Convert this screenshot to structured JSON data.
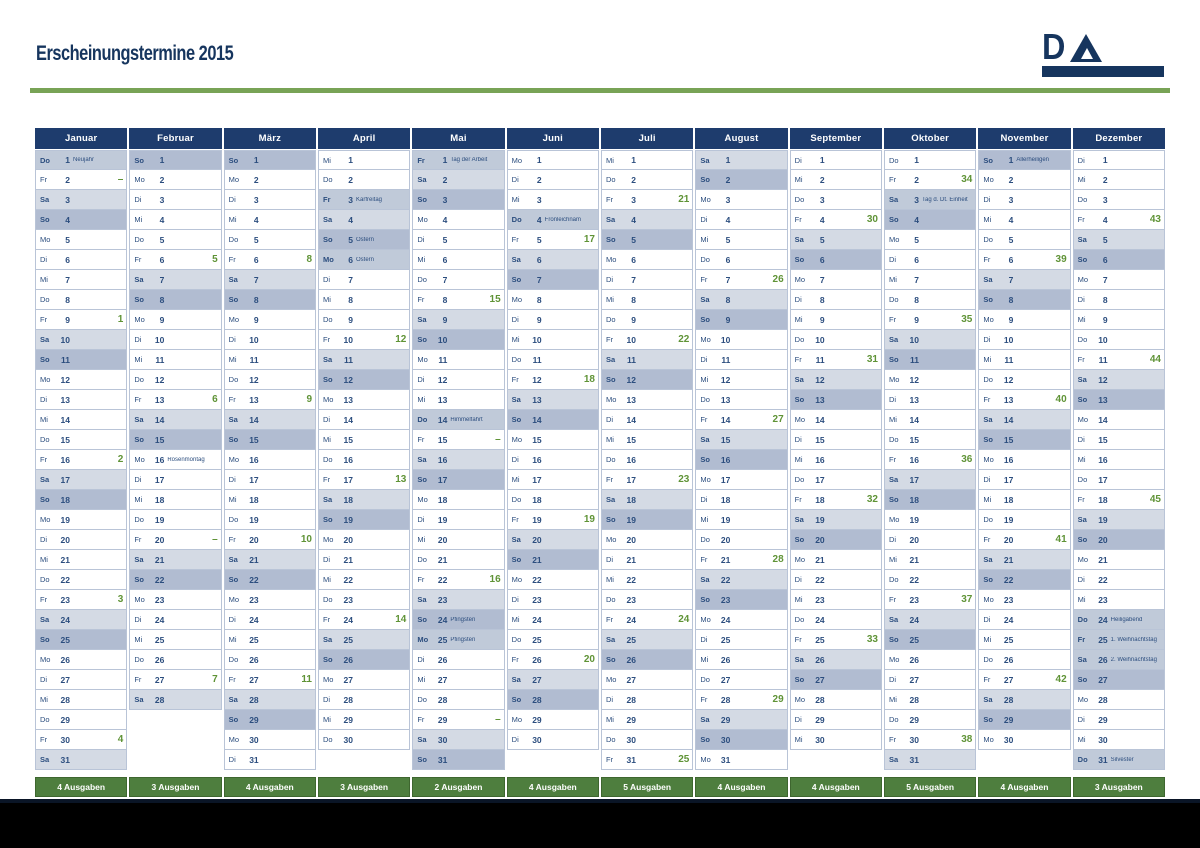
{
  "title": "Erscheinungstermine 2015",
  "logo": {
    "mark": "D"
  },
  "weekday_names": [
    "Mo",
    "Di",
    "Mi",
    "Do",
    "Fr",
    "Sa",
    "So"
  ],
  "colors": {
    "navy_header": "#1e3c6d",
    "cell_text_navy": "#2b4d7e",
    "saturday_bg": "#d4dae4",
    "sunday_bg": "#b1bcd1",
    "holiday_bg": "#c0cad9",
    "issue_green": "#5f9336",
    "rule_green": "#78a356",
    "footer_green": "#4e7e3e"
  },
  "months": [
    {
      "name": "Januar",
      "start": 3,
      "days": 31,
      "holidays": {
        "1": "Neujahr"
      },
      "notes": {},
      "issues": {
        "2": "–",
        "9": "1",
        "16": "2",
        "23": "3",
        "30": "4"
      },
      "footer": "4 Ausgaben"
    },
    {
      "name": "Februar",
      "start": 6,
      "days": 28,
      "holidays": {},
      "notes": {
        "16": "Rosenmontag"
      },
      "issues": {
        "6": "5",
        "13": "6",
        "20": "–",
        "27": "7"
      },
      "footer": "3 Ausgaben"
    },
    {
      "name": "März",
      "start": 6,
      "days": 31,
      "holidays": {},
      "notes": {},
      "issues": {
        "6": "8",
        "13": "9",
        "20": "10",
        "27": "11"
      },
      "footer": "4 Ausgaben"
    },
    {
      "name": "April",
      "start": 2,
      "days": 30,
      "holidays": {
        "3": "Karfreitag",
        "5": "Ostern",
        "6": "Ostern"
      },
      "notes": {},
      "issues": {
        "10": "12",
        "17": "13",
        "24": "14"
      },
      "footer": "3 Ausgaben"
    },
    {
      "name": "Mai",
      "start": 4,
      "days": 31,
      "holidays": {
        "1": "Tag der Arbeit",
        "14": "Himmelfahrt",
        "24": "Pfingsten",
        "25": "Pfingsten"
      },
      "notes": {},
      "issues": {
        "8": "15",
        "15": "–",
        "22": "16",
        "29": "–"
      },
      "footer": "2 Ausgaben"
    },
    {
      "name": "Juni",
      "start": 0,
      "days": 30,
      "holidays": {
        "4": "Fronleichnam"
      },
      "notes": {},
      "issues": {
        "5": "17",
        "12": "18",
        "19": "19",
        "26": "20"
      },
      "footer": "4 Ausgaben"
    },
    {
      "name": "Juli",
      "start": 2,
      "days": 31,
      "holidays": {},
      "notes": {},
      "issues": {
        "3": "21",
        "10": "22",
        "17": "23",
        "24": "24",
        "31": "25"
      },
      "footer": "5 Ausgaben"
    },
    {
      "name": "August",
      "start": 5,
      "days": 31,
      "holidays": {},
      "notes": {},
      "issues": {
        "7": "26",
        "14": "27",
        "21": "28",
        "28": "29"
      },
      "footer": "4 Ausgaben"
    },
    {
      "name": "September",
      "start": 1,
      "days": 30,
      "holidays": {},
      "notes": {},
      "issues": {
        "4": "30",
        "11": "31",
        "18": "32",
        "25": "33"
      },
      "footer": "4 Ausgaben"
    },
    {
      "name": "Oktober",
      "start": 3,
      "days": 31,
      "holidays": {
        "3": "Tag d. Dt. Einheit"
      },
      "notes": {},
      "issues": {
        "2": "34",
        "9": "35",
        "16": "36",
        "23": "37",
        "30": "38"
      },
      "footer": "5 Ausgaben"
    },
    {
      "name": "November",
      "start": 6,
      "days": 30,
      "holidays": {
        "1": "Allerheiligen"
      },
      "notes": {},
      "issues": {
        "6": "39",
        "13": "40",
        "20": "41",
        "27": "42"
      },
      "footer": "4 Ausgaben"
    },
    {
      "name": "Dezember",
      "start": 1,
      "days": 31,
      "holidays": {
        "24": "Heiligabend",
        "25": "1. Weihnachtstag",
        "26": "2. Weihnachtstag",
        "31": "Silvester"
      },
      "notes": {},
      "issues": {
        "4": "43",
        "11": "44",
        "18": "45"
      },
      "footer": "3 Ausgaben"
    }
  ]
}
